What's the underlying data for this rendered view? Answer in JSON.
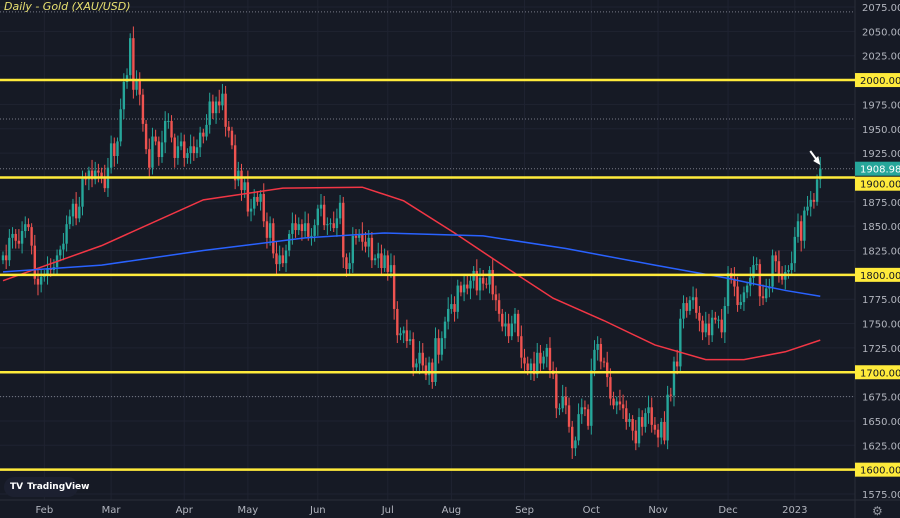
{
  "chart_data": {
    "type": "candlestick",
    "title": "Daily - Gold (XAU/USD)",
    "ylim": [
      1562.5,
      2082
    ],
    "y_ticks": [
      1575,
      1600,
      1625,
      1650,
      1675,
      1700,
      1725,
      1750,
      1775,
      1800,
      1825,
      1850,
      1875,
      1900,
      1925,
      1950,
      1975,
      2000,
      2025,
      2050,
      2075
    ],
    "x_ticks": [
      {
        "label": "Feb",
        "index": 13
      },
      {
        "label": "Mar",
        "index": 34
      },
      {
        "label": "Apr",
        "index": 57
      },
      {
        "label": "May",
        "index": 77
      },
      {
        "label": "Jun",
        "index": 99
      },
      {
        "label": "Jul",
        "index": 121
      },
      {
        "label": "Aug",
        "index": 141
      },
      {
        "label": "Sep",
        "index": 164
      },
      {
        "label": "Oct",
        "index": 185
      },
      {
        "label": "Nov",
        "index": 206
      },
      {
        "label": "Dec",
        "index": 228
      },
      {
        "label": "2023",
        "index": 249
      }
    ],
    "closes": [
      1820,
      1815,
      1838,
      1842,
      1835,
      1832,
      1845,
      1852,
      1849,
      1830,
      1796,
      1790,
      1798,
      1800,
      1807,
      1805,
      1808,
      1820,
      1826,
      1832,
      1852,
      1860,
      1873,
      1858,
      1870,
      1899,
      1898,
      1907,
      1898,
      1907,
      1905,
      1901,
      1889,
      1910,
      1935,
      1922,
      1937,
      1970,
      1998,
      2005,
      2043,
      1990,
      2000,
      1985,
      1955,
      1929,
      1910,
      1942,
      1937,
      1921,
      1936,
      1958,
      1958,
      1941,
      1920,
      1932,
      1937,
      1920,
      1925,
      1932,
      1925,
      1931,
      1946,
      1942,
      1954,
      1978,
      1966,
      1978,
      1974,
      1986,
      1952,
      1948,
      1933,
      1897,
      1907,
      1887,
      1895,
      1865,
      1868,
      1880,
      1875,
      1883,
      1855,
      1838,
      1853,
      1822,
      1811,
      1820,
      1812,
      1825,
      1842,
      1853,
      1846,
      1852,
      1845,
      1853,
      1839,
      1840,
      1851,
      1868,
      1872,
      1851,
      1852,
      1853,
      1848,
      1858,
      1874,
      1818,
      1806,
      1812,
      1840,
      1838,
      1842,
      1834,
      1829,
      1838,
      1815,
      1817,
      1822,
      1807,
      1820,
      1803,
      1810,
      1765,
      1738,
      1740,
      1743,
      1732,
      1734,
      1705,
      1709,
      1720,
      1707,
      1697,
      1710,
      1690,
      1735,
      1718,
      1735,
      1752,
      1765,
      1770,
      1762,
      1789,
      1782,
      1790,
      1786,
      1794,
      1804,
      1784,
      1797,
      1791,
      1790,
      1805,
      1780,
      1774,
      1760,
      1747,
      1750,
      1737,
      1750,
      1760,
      1737,
      1715,
      1709,
      1702,
      1709,
      1698,
      1720,
      1709,
      1716,
      1725,
      1702,
      1698,
      1663,
      1663,
      1675,
      1666,
      1644,
      1622,
      1630,
      1657,
      1664,
      1662,
      1645,
      1702,
      1723,
      1729,
      1711,
      1710,
      1695,
      1673,
      1666,
      1670,
      1667,
      1663,
      1649,
      1652,
      1640,
      1627,
      1654,
      1644,
      1658,
      1664,
      1646,
      1641,
      1633,
      1649,
      1630,
      1677,
      1676,
      1711,
      1706,
      1755,
      1771,
      1763,
      1774,
      1777,
      1761,
      1753,
      1741,
      1750,
      1738,
      1756,
      1754,
      1754,
      1741,
      1768,
      1802,
      1796,
      1788,
      1769,
      1772,
      1782,
      1789,
      1797,
      1810,
      1811,
      1778,
      1776,
      1786,
      1788,
      1820,
      1814,
      1800,
      1795,
      1803,
      1805,
      1812,
      1839,
      1855,
      1835,
      1866,
      1870,
      1877,
      1875,
      1898,
      1909
    ],
    "moving_averages": [
      {
        "color": "#f23645",
        "points": [
          [
            0,
            1794
          ],
          [
            31,
            1830
          ],
          [
            63,
            1877
          ],
          [
            88,
            1889
          ],
          [
            113,
            1890
          ],
          [
            126,
            1876
          ],
          [
            142,
            1843
          ],
          [
            158,
            1808
          ],
          [
            173,
            1776
          ],
          [
            189,
            1753
          ],
          [
            205,
            1728
          ],
          [
            221,
            1713
          ],
          [
            233,
            1713
          ],
          [
            246,
            1721
          ],
          [
            257,
            1733
          ]
        ]
      },
      {
        "color": "#2962ff",
        "points": [
          [
            0,
            1803
          ],
          [
            31,
            1810
          ],
          [
            63,
            1825
          ],
          [
            95,
            1838
          ],
          [
            120,
            1843
          ],
          [
            151,
            1840
          ],
          [
            177,
            1827
          ],
          [
            205,
            1810
          ],
          [
            227,
            1797
          ],
          [
            246,
            1784
          ],
          [
            257,
            1778
          ]
        ]
      }
    ],
    "horizontal_levels": [
      2000,
      1900,
      1800,
      1700,
      1600
    ],
    "dotted_levels": [
      2070,
      1960,
      1675
    ],
    "current_price": "1908.980",
    "level_labels": [
      "2000.000",
      "1900.000",
      "1800.000",
      "1700.000",
      "1600.000"
    ],
    "colors": {
      "up": "#26a69a",
      "down": "#ef5350",
      "level": "#ffeb3b",
      "background": "#161a25",
      "price_label": "#26a69a"
    },
    "annotation": "white-arrow-pointing-to-last-candle"
  },
  "brand": "TradingView"
}
